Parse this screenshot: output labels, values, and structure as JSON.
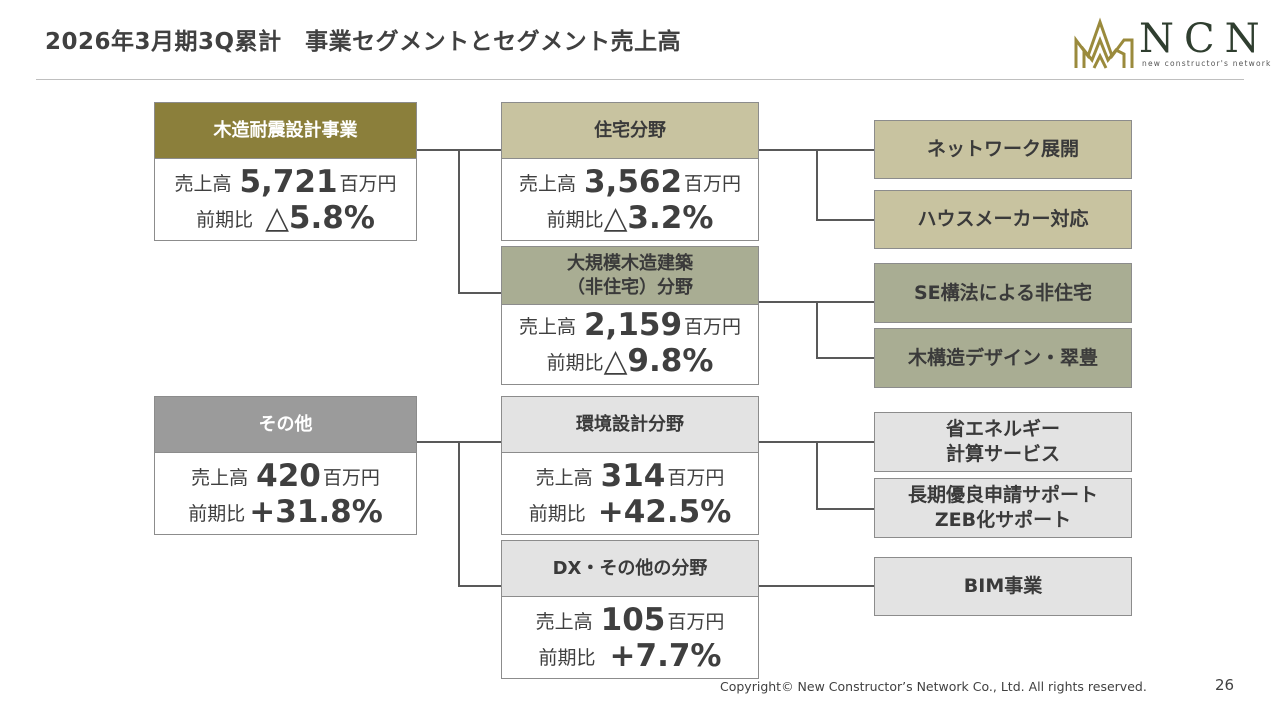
{
  "header": {
    "title": "2026年3月期3Q累計　事業セグメントとセグメント売上高",
    "logo_text": "NCN",
    "logo_sub": "new constructor's network"
  },
  "labels": {
    "sales": "売上高",
    "unit": "百万円",
    "yoy": "前期比"
  },
  "segments": [
    {
      "name": "木造耐震設計事業",
      "sales": "5,721",
      "yoy": "△5.8%"
    },
    {
      "name": "その他",
      "sales": "420",
      "yoy": "+31.8%"
    }
  ],
  "fields": [
    {
      "name": "住宅分野",
      "sales": "3,562",
      "yoy": "△3.2%"
    },
    {
      "name_line1": "大規模木造建築",
      "name_line2": "（非住宅）分野",
      "sales": "2,159",
      "yoy": "△9.8%"
    },
    {
      "name": "環境設計分野",
      "sales": "314",
      "yoy": "+42.5%"
    },
    {
      "name": "DX・その他の分野",
      "sales": "105",
      "yoy": "+7.7%"
    }
  ],
  "services": [
    {
      "line1": "ネットワーク展開"
    },
    {
      "line1": "ハウスメーカー対応"
    },
    {
      "line1": "SE構法による非住宅"
    },
    {
      "line1": "木構造デザイン・翠豊"
    },
    {
      "line1": "省エネルギー",
      "line2": "計算サービス"
    },
    {
      "line1": "長期優良申請サポート",
      "line2": "ZEB化サポート"
    },
    {
      "line1": "BIM事業"
    }
  ],
  "colors": {
    "segment_main": "#8b7f3b",
    "segment_other": "#9b9b9b",
    "housing": "#c8c3a0",
    "nonresidential": "#a9ad93",
    "light_gray": "#e3e3e3"
  },
  "footer": {
    "copyright": "Copyright© New Constructor’s Network Co., Ltd. All rights reserved.",
    "page_number": "26"
  }
}
